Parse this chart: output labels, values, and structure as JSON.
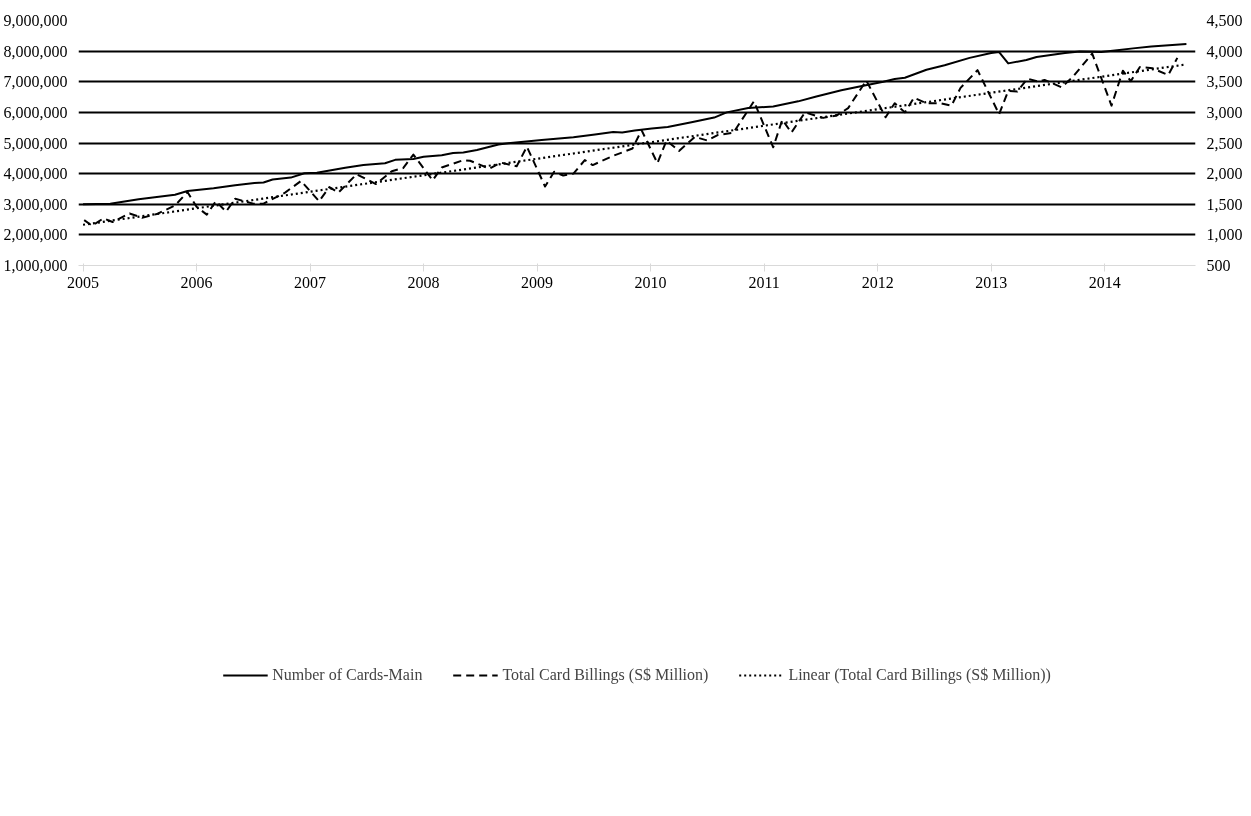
{
  "chart_data": {
    "type": "line",
    "xlim": [
      2004.96,
      2014.8
    ],
    "xticks": [
      2005,
      2006,
      2007,
      2008,
      2009,
      2010,
      2011,
      2012,
      2013,
      2014
    ],
    "ylim": [
      1000000,
      9000000
    ],
    "yticks": [
      {
        "value": 1000000,
        "label": "1,000,000"
      },
      {
        "value": 2000000,
        "label": "2,000,000"
      },
      {
        "value": 3000000,
        "label": "3,000,000"
      },
      {
        "value": 4000000,
        "label": "4,000,000"
      },
      {
        "value": 5000000,
        "label": "5,000,000"
      },
      {
        "value": 6000000,
        "label": "6,000,000"
      },
      {
        "value": 7000000,
        "label": "7,000,000"
      },
      {
        "value": 8000000,
        "label": "8,000,000"
      },
      {
        "value": 9000000,
        "label": "9,000,000"
      }
    ],
    "y2lim": [
      500,
      4500
    ],
    "y2ticks": [
      {
        "value": 500,
        "label": "500"
      },
      {
        "value": 1000,
        "label": "1,000"
      },
      {
        "value": 1500,
        "label": "1,500"
      },
      {
        "value": 2000,
        "label": "2,000"
      },
      {
        "value": 2500,
        "label": "2,500"
      },
      {
        "value": 3000,
        "label": "3,000"
      },
      {
        "value": 3500,
        "label": "3,500"
      },
      {
        "value": 4000,
        "label": "4,000"
      },
      {
        "value": 4500,
        "label": "4,500"
      }
    ],
    "grid": "y",
    "legend": "bottom",
    "series": [
      {
        "name": "Number of Cards-Main",
        "color": "#000000",
        "line_style": "solid",
        "x": [
          2005.0,
          2005.24,
          2005.49,
          2005.81,
          2005.92,
          2006.15,
          2006.34,
          2006.51,
          2006.59,
          2006.67,
          2006.83,
          2006.95,
          2007.06,
          2007.31,
          2007.47,
          2007.66,
          2007.75,
          2007.91,
          2008.0,
          2008.16,
          2008.26,
          2008.35,
          2008.47,
          2008.66,
          2008.79,
          2009.04,
          2009.32,
          2009.51,
          2009.67,
          2009.75,
          2009.86,
          2010.01,
          2010.15,
          2010.36,
          2010.56,
          2010.67,
          2010.86,
          2011.08,
          2011.3,
          2011.46,
          2011.68,
          2011.83,
          2012.05,
          2012.15,
          2012.24,
          2012.43,
          2012.59,
          2012.81,
          2013.0,
          2013.07,
          2013.15,
          2013.31,
          2013.4,
          2013.65,
          2013.78,
          2013.97,
          2014.09,
          2014.25,
          2014.41,
          2014.72
        ],
        "values": [
          3000000,
          3020000,
          3160000,
          3310000,
          3430000,
          3520000,
          3620000,
          3690000,
          3710000,
          3810000,
          3870000,
          4010000,
          4030000,
          4190000,
          4280000,
          4340000,
          4450000,
          4480000,
          4550000,
          4600000,
          4670000,
          4690000,
          4770000,
          4950000,
          5010000,
          5100000,
          5190000,
          5280000,
          5360000,
          5340000,
          5410000,
          5470000,
          5520000,
          5680000,
          5830000,
          6000000,
          6140000,
          6190000,
          6360000,
          6520000,
          6720000,
          6840000,
          7000000,
          7090000,
          7130000,
          7390000,
          7540000,
          7780000,
          7940000,
          7970000,
          7600000,
          7710000,
          7810000,
          7940000,
          7990000,
          7970000,
          8020000,
          8090000,
          8150000,
          8230000
        ]
      },
      {
        "name": "Total Card Billings (S$ Million)",
        "color": "#000000",
        "line_style": "dashed",
        "axis": "y2",
        "x": [
          2005.01,
          2005.08,
          2005.18,
          2005.26,
          2005.41,
          2005.52,
          2005.65,
          2005.81,
          2005.92,
          2006.0,
          2006.09,
          2006.17,
          2006.26,
          2006.34,
          2006.5,
          2006.59,
          2006.78,
          2006.92,
          2007.08,
          2007.17,
          2007.25,
          2007.41,
          2007.58,
          2007.72,
          2007.82,
          2007.91,
          2008.08,
          2008.16,
          2008.35,
          2008.41,
          2008.58,
          2008.68,
          2008.82,
          2008.91,
          2009.07,
          2009.15,
          2009.23,
          2009.32,
          2009.42,
          2009.49,
          2009.67,
          2009.84,
          2009.92,
          2010.06,
          2010.14,
          2010.25,
          2010.39,
          2010.5,
          2010.59,
          2010.73,
          2010.91,
          2011.08,
          2011.16,
          2011.24,
          2011.36,
          2011.52,
          2011.64,
          2011.74,
          2011.9,
          2012.07,
          2012.15,
          2012.24,
          2012.32,
          2012.43,
          2012.55,
          2012.65,
          2012.73,
          2012.88,
          2013.07,
          2013.15,
          2013.23,
          2013.32,
          2013.42,
          2013.47,
          2013.62,
          2013.72,
          2013.89,
          2014.06,
          2014.16,
          2014.23,
          2014.31,
          2014.42,
          2014.56,
          2014.64
        ],
        "values": [
          1240,
          1150,
          1270,
          1210,
          1350,
          1280,
          1340,
          1480,
          1700,
          1460,
          1330,
          1550,
          1380,
          1590,
          1510,
          1510,
          1690,
          1880,
          1550,
          1780,
          1690,
          1990,
          1830,
          2040,
          2090,
          2310,
          1890,
          2100,
          2220,
          2210,
          2080,
          2180,
          2120,
          2440,
          1790,
          2030,
          1970,
          2000,
          2220,
          2140,
          2290,
          2410,
          2710,
          2170,
          2540,
          2370,
          2600,
          2540,
          2630,
          2670,
          3180,
          2430,
          2880,
          2670,
          3000,
          2910,
          2950,
          3070,
          3520,
          2920,
          3150,
          3000,
          3240,
          3150,
          3150,
          3110,
          3400,
          3690,
          2970,
          3350,
          3340,
          3550,
          3500,
          3530,
          3410,
          3580,
          3960,
          3110,
          3680,
          3510,
          3740,
          3720,
          3610,
          3890
        ]
      },
      {
        "name": "Linear (Total Card Billings (S$ Million))",
        "color": "#000000",
        "line_style": "dotted",
        "axis": "y2",
        "x": [
          2005.0,
          2014.72
        ],
        "values": [
          1165,
          3784
        ]
      }
    ]
  }
}
